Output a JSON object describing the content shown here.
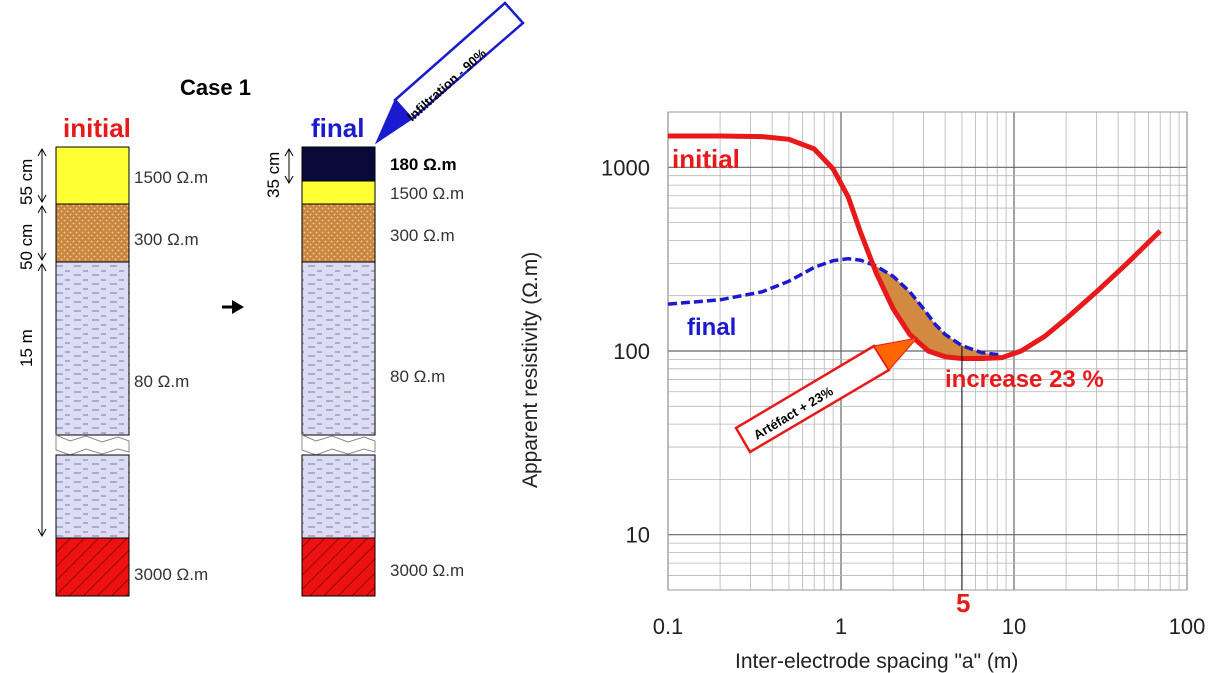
{
  "case_title": "Case 1",
  "initial_label": "initial",
  "final_label": "final",
  "colors": {
    "initial": "#e8191a",
    "final": "#1a1ad0",
    "yellow": "#ffff33",
    "brown": "#c9873f",
    "lavender": "#dcdcf5",
    "red_base": "#ee1111",
    "navy": "#0a0a3a",
    "artefact_fill": "#d18a40"
  },
  "left_column": {
    "dims": [
      "55 cm",
      "50 cm",
      "15 m"
    ],
    "layers": [
      "1500 Ω.m",
      "300 Ω.m",
      "80 Ω.m",
      "3000 Ω.m"
    ]
  },
  "right_column": {
    "dim": "35 cm",
    "layers": [
      "180 Ω.m",
      "1500 Ω.m",
      "300 Ω.m",
      "80 Ω.m",
      "3000 Ω.m"
    ],
    "callout": "Infiltration - 90%"
  },
  "chart_data": {
    "type": "line",
    "x_scale": "log",
    "y_scale": "log",
    "xlim": [
      0.1,
      100
    ],
    "ylim": [
      5,
      2000
    ],
    "xlabel": "Inter-electrode spacing \"a\" (m)",
    "ylabel": "Apparent resistivity (Ω.m)",
    "x_ticks": [
      "0.1",
      "1",
      "10",
      "100"
    ],
    "y_ticks": [
      "10",
      "100",
      "1000"
    ],
    "grid": true,
    "series": [
      {
        "name": "initial",
        "x": [
          0.1,
          0.2,
          0.35,
          0.5,
          0.7,
          0.9,
          1.1,
          1.3,
          1.6,
          2.0,
          2.5,
          3.2,
          4.0,
          5.0,
          6.5,
          8.5,
          11,
          15,
          20,
          30,
          45,
          70
        ],
        "y": [
          1480,
          1480,
          1470,
          1420,
          1260,
          980,
          690,
          440,
          265,
          170,
          123,
          100,
          93,
          91,
          91,
          92,
          100,
          120,
          150,
          210,
          300,
          450
        ]
      },
      {
        "name": "final",
        "x": [
          0.1,
          0.2,
          0.35,
          0.5,
          0.7,
          0.9,
          1.1,
          1.3,
          1.6,
          2.0,
          2.5,
          3.0,
          3.5,
          4.0,
          5.0,
          6.5,
          8.5
        ],
        "y": [
          180,
          190,
          210,
          240,
          285,
          310,
          318,
          312,
          290,
          255,
          210,
          170,
          140,
          123,
          107,
          98,
          95
        ]
      }
    ],
    "annotations": {
      "artefact": "Artéfact + 23%",
      "increase": "increase 23 %",
      "marker_value": "5"
    }
  }
}
